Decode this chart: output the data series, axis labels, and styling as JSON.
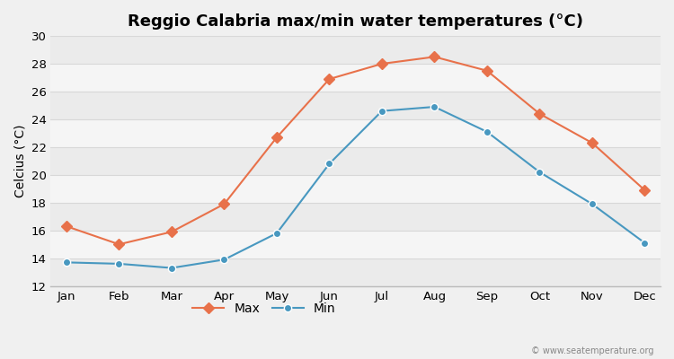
{
  "months": [
    "Jan",
    "Feb",
    "Mar",
    "Apr",
    "May",
    "Jun",
    "Jul",
    "Aug",
    "Sep",
    "Oct",
    "Nov",
    "Dec"
  ],
  "max_temps": [
    16.3,
    15.0,
    15.9,
    17.9,
    22.7,
    26.9,
    28.0,
    28.5,
    27.5,
    24.4,
    22.3,
    18.9
  ],
  "min_temps": [
    13.7,
    13.6,
    13.3,
    13.9,
    15.8,
    20.8,
    24.6,
    24.9,
    23.1,
    20.2,
    17.9,
    15.1
  ],
  "title": "Reggio Calabria max/min water temperatures (°C)",
  "ylabel": "Celcius (°C)",
  "ylim": [
    12,
    30
  ],
  "yticks": [
    12,
    14,
    16,
    18,
    20,
    22,
    24,
    26,
    28,
    30
  ],
  "max_color": "#e8714a",
  "min_color": "#4898c0",
  "band_colors": [
    "#ebebeb",
    "#f5f5f5"
  ],
  "grid_line_color": "#d8d8d8",
  "background_color": "#f0f0f0",
  "title_fontsize": 13,
  "axis_label_fontsize": 10,
  "tick_fontsize": 9.5,
  "legend_fontsize": 10,
  "watermark": "© www.seatemperature.org"
}
